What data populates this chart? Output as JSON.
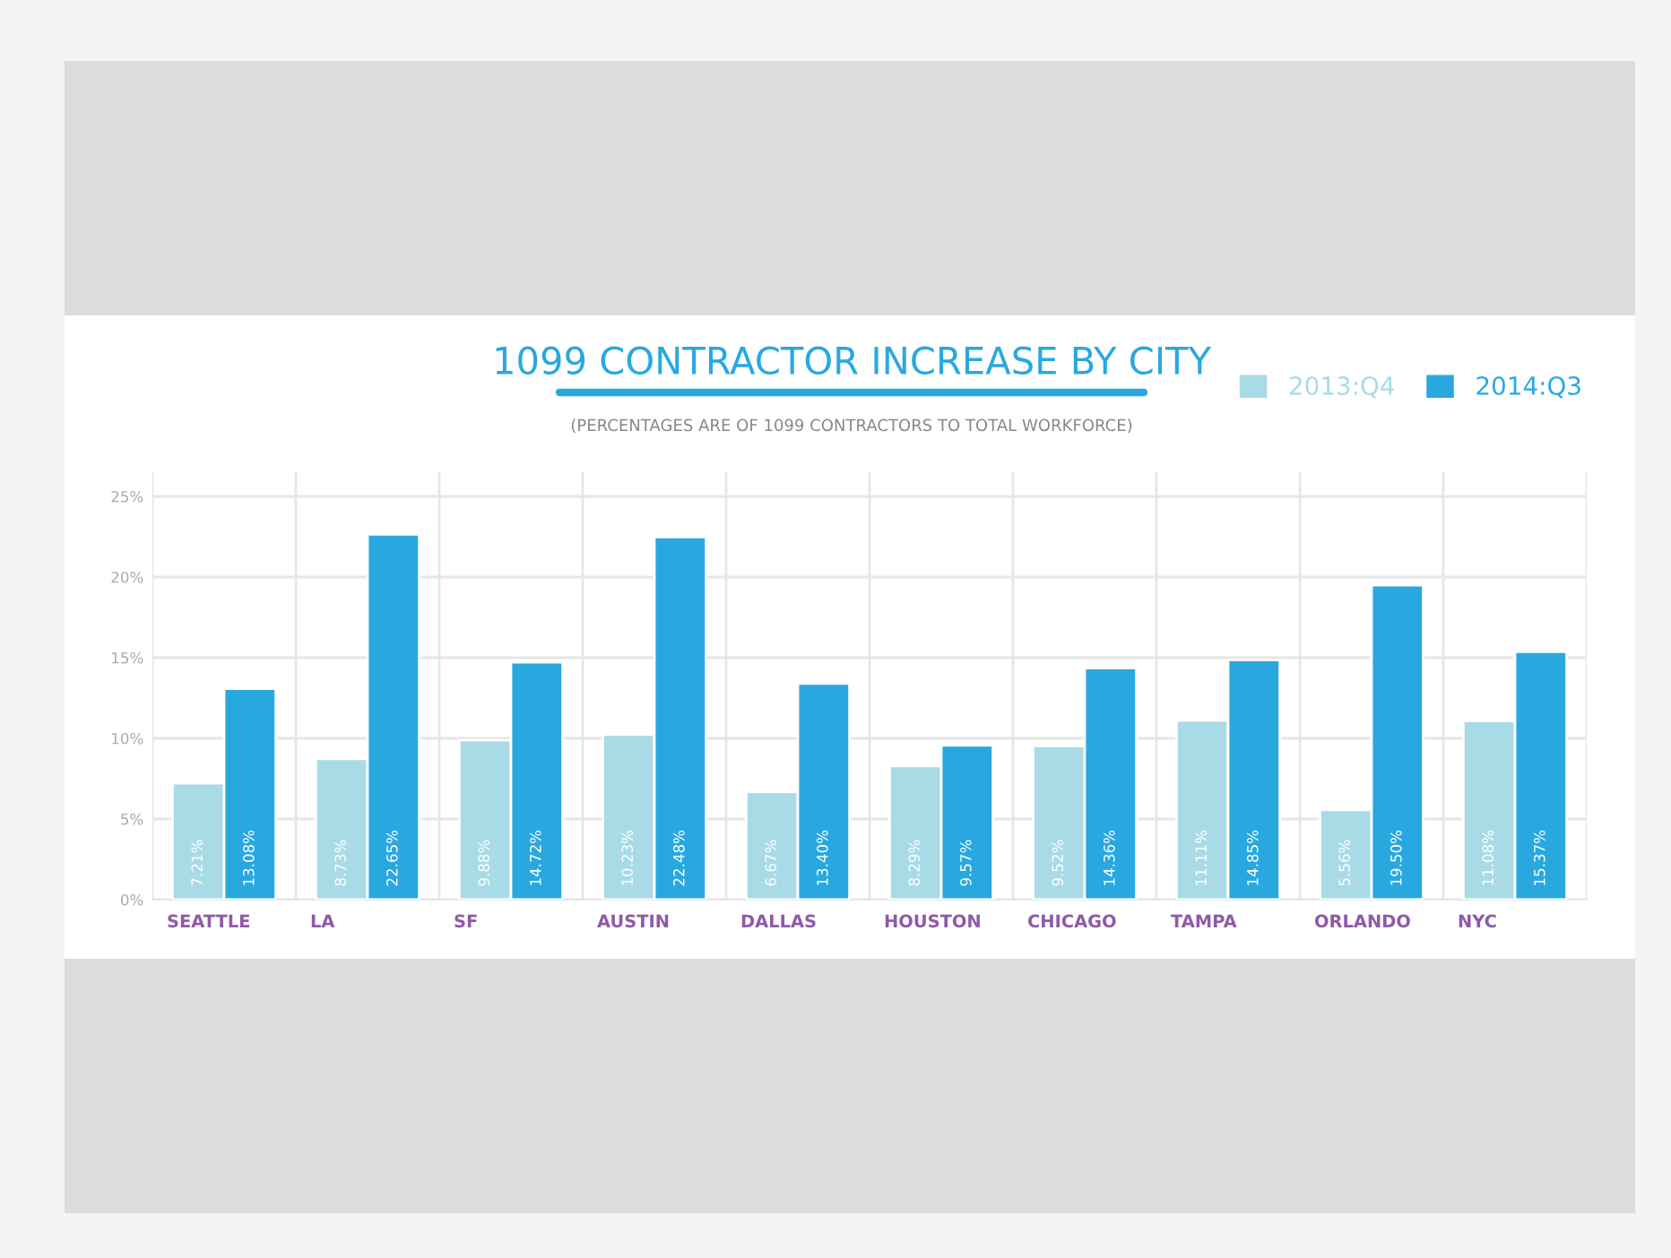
{
  "chart_data": {
    "type": "bar",
    "title": "1099 CONTRACTOR INCREASE BY CITY",
    "subtitle": "(PERCENTAGES ARE OF 1099 CONTRACTORS TO TOTAL WORKFORCE)",
    "categories": [
      "SEATTLE",
      "LA",
      "SF",
      "AUSTIN",
      "DALLAS",
      "HOUSTON",
      "CHICAGO",
      "TAMPA",
      "ORLANDO",
      "NYC"
    ],
    "series": [
      {
        "name": "2013:Q4",
        "color": "#a8dbe6",
        "values": [
          7.21,
          8.73,
          9.88,
          10.23,
          6.67,
          8.29,
          9.52,
          11.11,
          5.56,
          11.08
        ],
        "value_labels": [
          "7.21%",
          "8.73%",
          "9.88%",
          "10.23%",
          "6.67%",
          "8.29%",
          "9.52%",
          "11.11%",
          "5.56%",
          "11.08%"
        ]
      },
      {
        "name": "2014:Q3",
        "color": "#29a8e0",
        "values": [
          13.08,
          22.65,
          14.72,
          22.48,
          13.4,
          9.57,
          14.36,
          14.85,
          19.5,
          15.37
        ],
        "value_labels": [
          "13.08%",
          "22.65%",
          "14.72%",
          "22.48%",
          "13.40%",
          "9.57%",
          "14.36%",
          "14.85%",
          "19.50%",
          "15.37%"
        ]
      }
    ],
    "ylim": [
      0,
      26.5
    ],
    "yticks": [
      {
        "value": 0,
        "label": "0%"
      },
      {
        "value": 5,
        "label": "5%"
      },
      {
        "value": 10,
        "label": "10%"
      },
      {
        "value": 15,
        "label": "15%"
      },
      {
        "value": 20,
        "label": "20%"
      },
      {
        "value": 25,
        "label": "25%"
      }
    ],
    "grid": true,
    "legend": "top right"
  }
}
